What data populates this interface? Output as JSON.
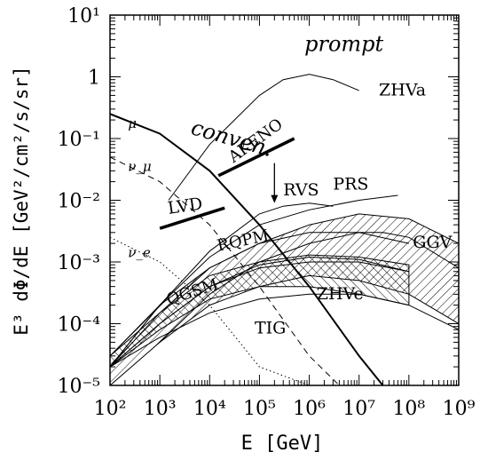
{
  "chart_data": {
    "type": "line",
    "xlabel": "E [GeV]",
    "ylabel": "E³ dΦ/dE  [GeV²/cm²/s/sr]",
    "xscale": "log",
    "yscale": "log",
    "xlim": [
      100,
      1000000000
    ],
    "ylim": [
      1e-05,
      10
    ],
    "x_tick_labels": [
      "10²",
      "10³",
      "10⁴",
      "10⁵",
      "10⁶",
      "10⁷",
      "10⁸",
      "10⁹"
    ],
    "y_tick_labels": [
      "10⁻⁵",
      "10⁻⁴",
      "10⁻³",
      "10⁻²",
      "10⁻¹",
      "1",
      "10¹"
    ],
    "grid": false,
    "series": [
      {
        "name": "μ",
        "style": "solid",
        "width": 2,
        "x": [
          100,
          1000,
          10000,
          100000,
          1000000,
          10000000,
          30000000
        ],
        "y": [
          0.25,
          0.12,
          0.03,
          0.004,
          0.0004,
          3e-05,
          1e-05
        ]
      },
      {
        "name": "ν_μ",
        "style": "dashed",
        "width": 1,
        "x": [
          100,
          1000,
          10000,
          100000,
          1000000,
          4000000
        ],
        "y": [
          0.05,
          0.02,
          0.004,
          0.0004,
          3e-05,
          1e-05
        ]
      },
      {
        "name": "ν_e",
        "style": "dotted",
        "width": 1,
        "x": [
          100,
          1000,
          10000,
          100000,
          1000000
        ],
        "y": [
          0.0025,
          0.001,
          0.0002,
          2e-05,
          1e-05
        ]
      },
      {
        "name": "ZHVa",
        "style": "solid",
        "width": 1,
        "x": [
          1500,
          10000,
          100000,
          300000,
          1000000,
          3000000,
          10000000
        ],
        "y": [
          0.01,
          0.08,
          0.5,
          0.9,
          1.1,
          0.9,
          0.6
        ]
      },
      {
        "name": "RVS",
        "style": "solid",
        "width": 1,
        "x": [
          100,
          1000,
          10000,
          100000,
          300000,
          1000000,
          3000000
        ],
        "y": [
          2e-05,
          0.0002,
          0.0015,
          0.006,
          0.008,
          0.009,
          0.008
        ]
      },
      {
        "name": "PRS",
        "style": "solid",
        "width": 1,
        "x": [
          100,
          1000,
          10000,
          100000,
          1000000,
          10000000,
          60000000
        ],
        "y": [
          2e-05,
          0.0002,
          0.0012,
          0.004,
          0.007,
          0.01,
          0.012
        ]
      },
      {
        "name": "RQPM",
        "style": "solid",
        "width": 1,
        "x": [
          100,
          1000,
          10000,
          100000,
          1000000,
          10000000,
          100000000
        ],
        "y": [
          2e-05,
          0.00015,
          0.0008,
          0.002,
          0.003,
          0.003,
          0.002
        ]
      },
      {
        "name": "QGSM",
        "style": "solid",
        "width": 1,
        "x": [
          100,
          1000,
          10000,
          100000,
          1000000,
          10000000,
          100000000
        ],
        "y": [
          2e-05,
          0.0001,
          0.0004,
          0.0009,
          0.0012,
          0.0011,
          0.0007
        ]
      },
      {
        "name": "ZHVe",
        "style": "solid",
        "width": 1,
        "x": [
          100,
          1000,
          10000,
          100000,
          1000000,
          10000000,
          100000000
        ],
        "y": [
          2e-05,
          0.0001,
          0.0004,
          0.0008,
          0.001,
          0.001,
          0.0007
        ]
      },
      {
        "name": "TIG",
        "style": "solid",
        "width": 1,
        "x": [
          100,
          1000,
          10000,
          100000,
          1000000,
          10000000,
          100000000,
          1000000000
        ],
        "y": [
          2e-05,
          6e-05,
          0.00015,
          0.00025,
          0.0003,
          0.0003,
          0.0002,
          8e-05
        ]
      },
      {
        "name": "GGV",
        "style": "solid",
        "width": 1,
        "x": [
          1000,
          10000,
          100000,
          1000000,
          10000000,
          30000000,
          100000000,
          1000000000
        ],
        "y": [
          5e-05,
          0.0003,
          0.001,
          0.002,
          0.003,
          0.003,
          0.0025,
          0.0008
        ]
      }
    ],
    "bands": [
      {
        "name": "GGV-band",
        "x": [
          100,
          1000,
          10000,
          100000,
          1000000,
          10000000,
          100000000,
          1000000000
        ],
        "y_low": [
          1e-05,
          5e-05,
          0.0002,
          0.0004,
          0.0006,
          0.0005,
          0.0003,
          0.0001
        ],
        "y_high": [
          3e-05,
          0.0002,
          0.0008,
          0.002,
          0.004,
          0.006,
          0.005,
          0.002
        ]
      },
      {
        "name": "ZHVe-band",
        "x": [
          100,
          1000,
          10000,
          100000,
          1000000,
          10000000,
          100000000
        ],
        "y_low": [
          2e-05,
          8e-05,
          0.00025,
          0.0004,
          0.0004,
          0.0003,
          0.0002
        ],
        "y_high": [
          3e-05,
          0.00015,
          0.0006,
          0.001,
          0.0013,
          0.0012,
          0.0009
        ]
      }
    ],
    "limits": [
      {
        "name": "AKENO",
        "x": [
          15000,
          500000
        ],
        "y": [
          0.025,
          0.1
        ]
      },
      {
        "name": "LVD",
        "x": [
          1000,
          20000
        ],
        "y": [
          0.0035,
          0.0075
        ]
      }
    ],
    "arrow": {
      "x": 200000,
      "y_from": 0.04,
      "y_to": 0.009
    },
    "annotations": [
      {
        "text": "prompt",
        "x": 800000,
        "y": 2.6
      },
      {
        "text": "conven.",
        "x": 4000,
        "y": 0.12
      },
      {
        "text": "ZHVa",
        "x": 25000000,
        "y": 0.5
      },
      {
        "text": "AKENO",
        "x": 30000,
        "y": 0.04
      },
      {
        "text": "RVS",
        "x": 300000,
        "y": 0.012
      },
      {
        "text": "PRS",
        "x": 3000000,
        "y": 0.015
      },
      {
        "text": "LVD",
        "x": 1500,
        "y": 0.006
      },
      {
        "text": "GGV",
        "x": 120000000,
        "y": 0.0017
      },
      {
        "text": "RQPM",
        "x": 15000,
        "y": 0.0015
      },
      {
        "text": "QGSM",
        "x": 1500,
        "y": 0.0002
      },
      {
        "text": "ZHVe",
        "x": 1400000,
        "y": 0.00025
      },
      {
        "text": "TIG",
        "x": 80000,
        "y": 7e-05
      },
      {
        "text": "μ",
        "x": 230,
        "y": 0.15
      },
      {
        "text": "ν_μ",
        "x": 230,
        "y": 0.03
      },
      {
        "text": "ν_e",
        "x": 230,
        "y": 0.0012
      }
    ]
  }
}
